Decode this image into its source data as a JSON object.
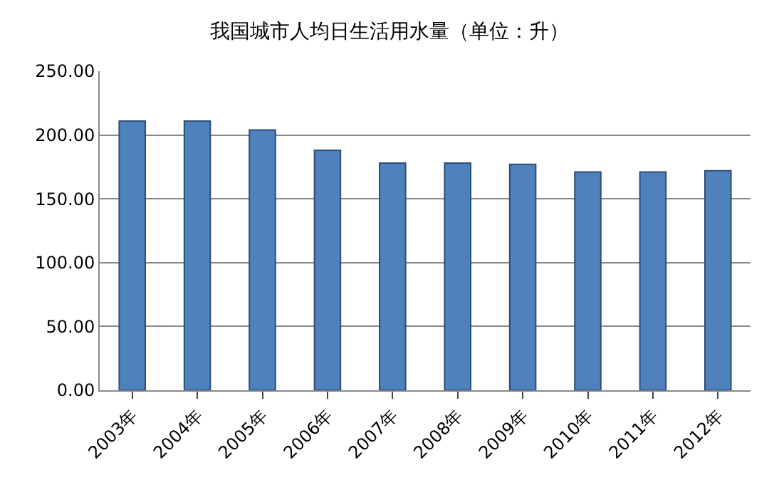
{
  "chart_data": {
    "type": "bar",
    "title": "我国城市人均日生活用水量（单位：升）",
    "categories": [
      "2003年",
      "2004年",
      "2005年",
      "2006年",
      "2007年",
      "2008年",
      "2009年",
      "2010年",
      "2011年",
      "2012年"
    ],
    "values": [
      211,
      211,
      204,
      188,
      178,
      178,
      177,
      171,
      171,
      172
    ],
    "color": "#4f81bd",
    "ylim": [
      0,
      250
    ],
    "yticks": [
      {
        "value": 0,
        "label": "0.00"
      },
      {
        "value": 50,
        "label": "50.00"
      },
      {
        "value": 100,
        "label": "100.00"
      },
      {
        "value": 150,
        "label": "150.00"
      },
      {
        "value": 200,
        "label": "200.00"
      },
      {
        "value": 250,
        "label": "250.00"
      }
    ],
    "grid": "y",
    "legend": false
  }
}
